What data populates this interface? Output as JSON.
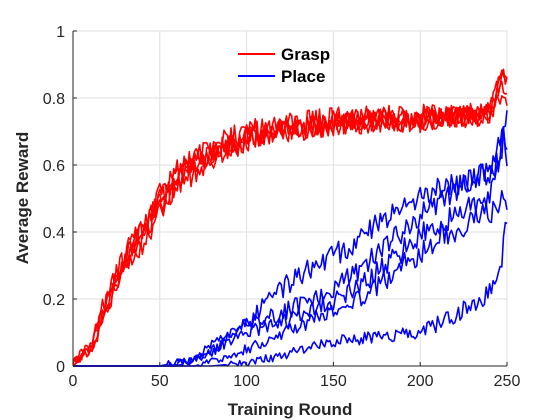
{
  "chart_data": {
    "type": "line",
    "xlabel": "Training Round",
    "ylabel": "Average Reward",
    "xlim": [
      0,
      250
    ],
    "ylim": [
      0,
      1
    ],
    "xticks": [
      "0",
      "50",
      "100",
      "150",
      "200",
      "250"
    ],
    "yticks": [
      "0",
      "0.2",
      "0.4",
      "0.6",
      "0.8",
      "1"
    ],
    "grid": true,
    "legend_position": "top-center",
    "legend": [
      {
        "label": "Grasp",
        "color": "#ff0000"
      },
      {
        "label": "Place",
        "color": "#0000ff"
      }
    ],
    "groups": [
      {
        "name": "Grasp",
        "color": "#ff0000",
        "runs": [
          {
            "x": [
              0,
              10,
              20,
              30,
              40,
              50,
              60,
              70,
              80,
              90,
              100,
              120,
              150,
              200,
              240,
              247,
              250
            ],
            "y": [
              0.01,
              0.05,
              0.2,
              0.34,
              0.41,
              0.5,
              0.57,
              0.6,
              0.63,
              0.65,
              0.67,
              0.7,
              0.72,
              0.73,
              0.76,
              0.88,
              0.84
            ]
          },
          {
            "x": [
              0,
              10,
              20,
              30,
              40,
              50,
              60,
              70,
              80,
              90,
              100,
              120,
              150,
              200,
              240,
              247,
              250
            ],
            "y": [
              0.01,
              0.04,
              0.17,
              0.32,
              0.38,
              0.47,
              0.53,
              0.58,
              0.62,
              0.65,
              0.68,
              0.71,
              0.73,
              0.74,
              0.75,
              0.84,
              0.83
            ]
          },
          {
            "x": [
              0,
              10,
              20,
              30,
              40,
              50,
              60,
              70,
              80,
              90,
              100,
              120,
              150,
              200,
              240,
              247,
              250
            ],
            "y": [
              0.02,
              0.06,
              0.22,
              0.33,
              0.4,
              0.52,
              0.58,
              0.62,
              0.66,
              0.68,
              0.7,
              0.72,
              0.74,
              0.75,
              0.74,
              0.86,
              0.85
            ]
          },
          {
            "x": [
              0,
              10,
              20,
              30,
              40,
              50,
              60,
              70,
              80,
              90,
              100,
              120,
              150,
              200,
              240,
              247,
              250
            ],
            "y": [
              0.01,
              0.04,
              0.18,
              0.29,
              0.36,
              0.46,
              0.55,
              0.6,
              0.63,
              0.66,
              0.68,
              0.7,
              0.72,
              0.73,
              0.75,
              0.82,
              0.8
            ]
          },
          {
            "x": [
              0,
              10,
              20,
              30,
              40,
              50,
              60,
              70,
              80,
              90,
              100,
              120,
              150,
              200,
              240,
              247,
              250
            ],
            "y": [
              0.01,
              0.05,
              0.2,
              0.33,
              0.4,
              0.49,
              0.56,
              0.61,
              0.64,
              0.66,
              0.69,
              0.71,
              0.73,
              0.74,
              0.76,
              0.87,
              0.86
            ]
          }
        ]
      },
      {
        "name": "Place",
        "color": "#0000ff",
        "runs": [
          {
            "x": [
              0,
              50,
              70,
              80,
              100,
              120,
              140,
              160,
              180,
              200,
              220,
              240,
              246,
              248,
              250
            ],
            "y": [
              0,
              0,
              0.02,
              0.06,
              0.12,
              0.16,
              0.2,
              0.27,
              0.36,
              0.45,
              0.52,
              0.58,
              0.68,
              0.72,
              0.6
            ]
          },
          {
            "x": [
              0,
              50,
              70,
              80,
              100,
              120,
              140,
              160,
              180,
              200,
              220,
              240,
              246,
              248,
              250
            ],
            "y": [
              0,
              0,
              0.02,
              0.05,
              0.1,
              0.13,
              0.17,
              0.22,
              0.3,
              0.39,
              0.45,
              0.5,
              0.62,
              0.74,
              0.73
            ]
          },
          {
            "x": [
              0,
              60,
              80,
              100,
              120,
              140,
              160,
              180,
              200,
              220,
              240,
              246,
              248,
              250
            ],
            "y": [
              0,
              0,
              0.04,
              0.13,
              0.23,
              0.3,
              0.36,
              0.44,
              0.51,
              0.54,
              0.58,
              0.62,
              0.68,
              0.62
            ]
          },
          {
            "x": [
              0,
              70,
              90,
              110,
              130,
              150,
              170,
              190,
              210,
              230,
              240,
              246,
              248,
              250
            ],
            "y": [
              0,
              0,
              0.03,
              0.07,
              0.12,
              0.17,
              0.22,
              0.3,
              0.38,
              0.43,
              0.46,
              0.48,
              0.52,
              0.44
            ]
          },
          {
            "x": [
              0,
              80,
              100,
              120,
              140,
              160,
              180,
              200,
              220,
              240,
              246,
              248,
              250
            ],
            "y": [
              0,
              0,
              0.01,
              0.03,
              0.06,
              0.08,
              0.09,
              0.1,
              0.15,
              0.22,
              0.3,
              0.36,
              0.43
            ]
          }
        ]
      }
    ]
  }
}
